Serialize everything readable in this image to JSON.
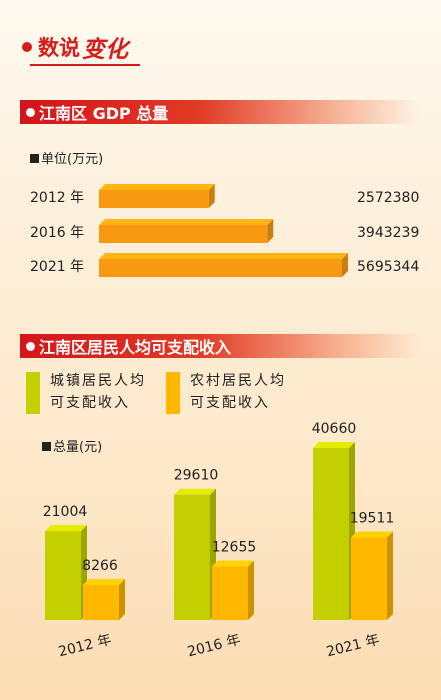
{
  "header": {
    "title_part1": "数说",
    "title_part2": "变化"
  },
  "section1": {
    "title": "江南区 GDP 总量",
    "unit": "单位(万元)"
  },
  "section2": {
    "title": "江南区居民人均可支配收入",
    "legend": [
      {
        "line1": "城镇居民人均",
        "line2": "可支配收入",
        "color": "#c4cf00"
      },
      {
        "line1": "农村居民人均",
        "line2": "可支配收入",
        "color": "#ffb700"
      }
    ],
    "unit": "总量(元)"
  },
  "colors": {
    "accent_red": "#d81c1c",
    "gdp_bar": "#f79a12",
    "urban": "#c4cf00",
    "rural": "#ffb700"
  },
  "chart_data": [
    {
      "type": "bar",
      "orientation": "horizontal",
      "title": "江南区 GDP 总量",
      "unit": "单位(万元)",
      "categories": [
        "2012 年",
        "2016 年",
        "2021 年"
      ],
      "values": [
        2572380,
        3943239,
        5695344
      ],
      "value_labels": [
        "2572380",
        "3943239",
        "5695344"
      ]
    },
    {
      "type": "bar",
      "title": "江南区居民人均可支配收入",
      "ylabel": "总量(元)",
      "categories": [
        "2012 年",
        "2016 年",
        "2021 年"
      ],
      "series": [
        {
          "name": "城镇居民人均可支配收入",
          "values": [
            21004,
            29610,
            40660
          ],
          "labels": [
            "21004",
            "29610",
            "40660"
          ]
        },
        {
          "name": "农村居民人均可支配收入",
          "values": [
            8266,
            12655,
            19511
          ],
          "labels": [
            "8266",
            "12655",
            "19511"
          ]
        }
      ]
    }
  ]
}
